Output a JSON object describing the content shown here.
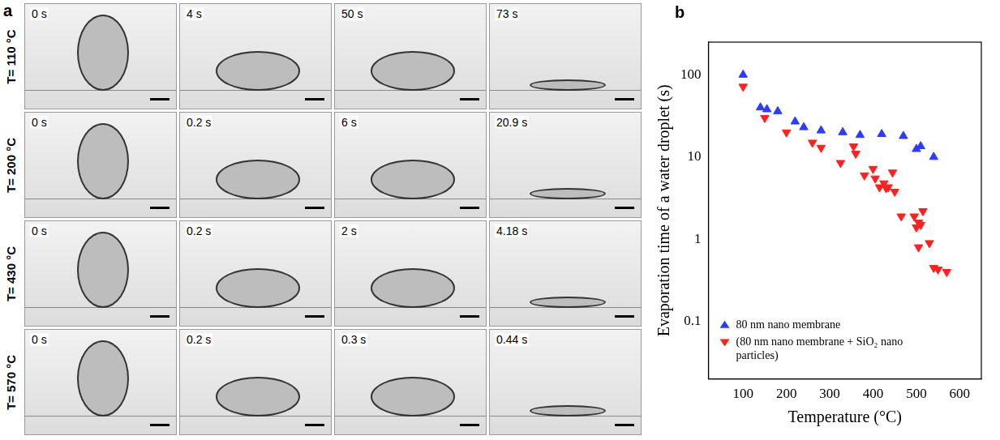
{
  "panel_a": {
    "label": "a",
    "rows": [
      {
        "temperature": "T= 110 °C",
        "times": [
          "0 s",
          "4 s",
          "50 s",
          "73 s"
        ]
      },
      {
        "temperature": "T= 200 °C",
        "times": [
          "0 s",
          "0.2 s",
          "6 s",
          "20.9 s"
        ]
      },
      {
        "temperature": "T= 430 °C",
        "times": [
          "0 s",
          "0.2 s",
          "2 s",
          "4.18 s"
        ]
      },
      {
        "temperature": "T= 570 °C",
        "times": [
          "0 s",
          "0.2 s",
          "0.3 s",
          "0.44 s"
        ]
      }
    ]
  },
  "chart_data": {
    "type": "scatter",
    "label": "b",
    "x_label": "Temperature (°C)",
    "y_label": "Evaporation time of a water droplet (s)",
    "log": "y",
    "grid": false,
    "legend": "lower left",
    "xlim": [
      20,
      650
    ],
    "xticks": [
      100,
      200,
      300,
      400,
      500,
      600
    ],
    "ylim": [
      0.02,
      250
    ],
    "yticks": [
      0.1,
      1,
      10,
      100
    ],
    "series": [
      {
        "name": "80 nm nano membrane",
        "color": "#2b3bff",
        "marker": "triangle-up",
        "x": [
          100,
          140,
          155,
          180,
          220,
          240,
          280,
          330,
          370,
          420,
          470,
          500,
          510,
          540
        ],
        "values": [
          100,
          40,
          38,
          36,
          27,
          23,
          21,
          20,
          18.5,
          19,
          18,
          12.5,
          13.5,
          10
        ]
      },
      {
        "name": "(80 nm nano membrane + SiO₂ nano particles)",
        "color": "#ff2020",
        "marker": "triangle-down",
        "x": [
          100,
          150,
          200,
          260,
          280,
          325,
          355,
          360,
          380,
          400,
          405,
          415,
          425,
          430,
          435,
          445,
          450,
          465,
          495,
          500,
          505,
          505,
          510,
          515,
          530,
          540,
          550,
          570
        ],
        "values": [
          72,
          30,
          20,
          15,
          13,
          8.5,
          13.5,
          11,
          6,
          7.2,
          5.5,
          4.3,
          4.8,
          4.2,
          4.3,
          6.5,
          3.8,
          1.9,
          1.9,
          1.4,
          0.8,
          1.6,
          1.5,
          2.2,
          0.9,
          0.45,
          0.43,
          0.4
        ]
      }
    ]
  }
}
